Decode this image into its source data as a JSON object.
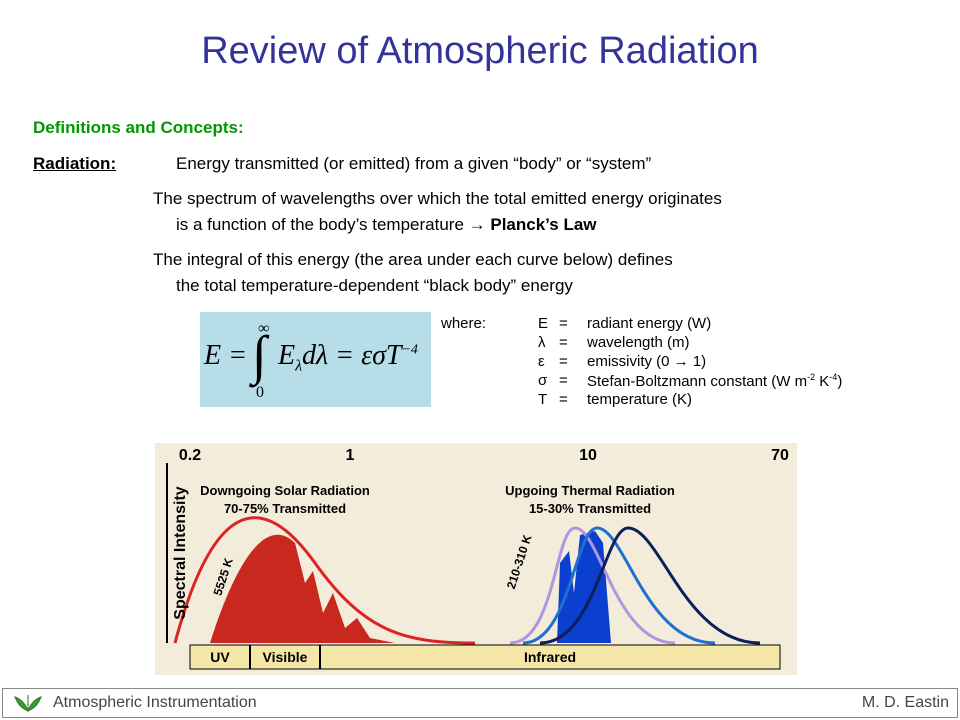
{
  "title": "Review of Atmospheric Radiation",
  "section": "Definitions and Concepts:",
  "term": "Radiation:",
  "definition": "Energy transmitted (or emitted) from a given “body” or “system”",
  "paragraphs": [
    {
      "line1": "The spectrum of wavelengths over which the total emitted energy originates",
      "line2": "is a function of the body’s temperature → ",
      "bold": "Planck’s Law"
    },
    {
      "line1": "The integral of this energy (the area under each curve below) defines",
      "line2": "the total temperature-dependent “black body” energy"
    }
  ],
  "equation": {
    "lhs": "E =",
    "upper": "∞",
    "lower": "0",
    "integrand": "E",
    "sub": "λ",
    "rest": "dλ = εσT",
    "exp": "−4"
  },
  "where": "where:",
  "symbols": [
    {
      "symbol": "E",
      "eq": "=",
      "meaning": "radiant energy (W)"
    },
    {
      "symbol": "λ",
      "eq": "=",
      "meaning": "wavelength (m)"
    },
    {
      "symbol": "ε",
      "eq": "=",
      "meaning": "emissivity (0 → 1)"
    },
    {
      "symbol": "σ",
      "eq": "=",
      "meaning": "Stefan-Boltzmann constant (W m",
      "sup1": "-2",
      "mid": " K",
      "sup2": "-4",
      "end": ")"
    },
    {
      "symbol": "T",
      "eq": "=",
      "meaning": "temperature (K)"
    }
  ],
  "figure": {
    "ticks": [
      "0.2",
      "1",
      "10",
      "70"
    ],
    "y_label": "Spectral Intensity",
    "solar": [
      "Downgoing Solar Radiation",
      "70-75% Transmitted"
    ],
    "thermal": [
      "Upgoing Thermal Radiation",
      "15-30% Transmitted"
    ],
    "solar_temp": "5525 K",
    "thermal_temp": "210-310 K",
    "bands": [
      "UV",
      "Visible",
      "Infrared"
    ]
  },
  "footer": {
    "left": "Atmospheric Instrumentation",
    "right": "M. D. Eastin"
  }
}
